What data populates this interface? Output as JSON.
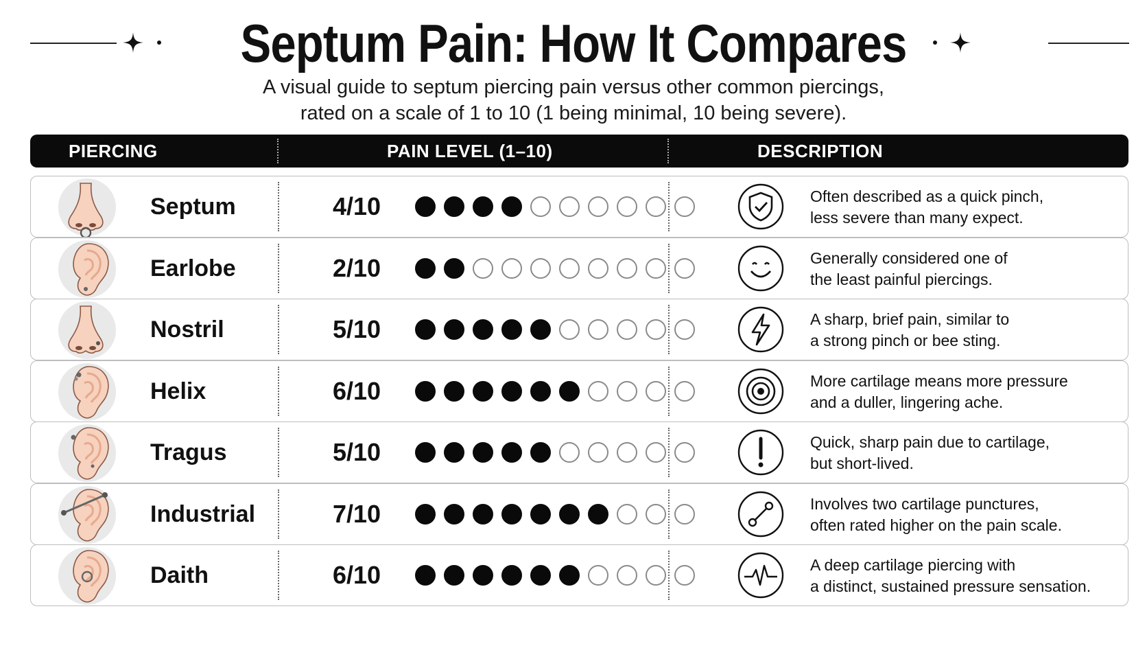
{
  "title": "Septum Pain: How It Compares",
  "subtitle": {
    "line1": "A visual guide to septum piercing pain versus other common piercings,",
    "line2": "rated on a scale of 1 to 10 (1 being minimal, 10 being severe)."
  },
  "table": {
    "headers": {
      "piercing": "PIERCING",
      "pain_level": "PAIN LEVEL (1–10)",
      "description": "DESCRIPTION"
    },
    "max_score": 10,
    "rows": [
      {
        "name": "Septum",
        "score": 4,
        "score_label": "4/10",
        "image": "nose-septum-ring-icon",
        "desc_icon": "shield-check-icon",
        "desc_line1": "Often described as a quick pinch,",
        "desc_line2": "less severe than many expect."
      },
      {
        "name": "Earlobe",
        "score": 2,
        "score_label": "2/10",
        "image": "ear-lobe-stud-icon",
        "desc_icon": "smiley-face-icon",
        "desc_line1": "Generally considered one of",
        "desc_line2": "the least painful piercings."
      },
      {
        "name": "Nostril",
        "score": 5,
        "score_label": "5/10",
        "image": "nose-nostril-stud-icon",
        "desc_icon": "lightning-bolt-icon",
        "desc_line1": "A sharp, brief pain, similar to",
        "desc_line2": "a strong pinch or bee sting."
      },
      {
        "name": "Helix",
        "score": 6,
        "score_label": "6/10",
        "image": "ear-helix-icon",
        "desc_icon": "target-icon",
        "desc_line1": "More cartilage means more pressure",
        "desc_line2": "and a duller, lingering ache."
      },
      {
        "name": "Tragus",
        "score": 5,
        "score_label": "5/10",
        "image": "ear-tragus-icon",
        "desc_icon": "exclamation-icon",
        "desc_line1": "Quick, sharp pain due to cartilage,",
        "desc_line2": "but short-lived."
      },
      {
        "name": "Industrial",
        "score": 7,
        "score_label": "7/10",
        "image": "ear-industrial-bar-icon",
        "desc_icon": "connected-points-icon",
        "desc_line1": "Involves two cartilage punctures,",
        "desc_line2": "often rated higher on the pain scale."
      },
      {
        "name": "Daith",
        "score": 6,
        "score_label": "6/10",
        "image": "ear-daith-ring-icon",
        "desc_icon": "heartbeat-icon",
        "desc_line1": "A deep cartilage piercing with",
        "desc_line2": "a distinct, sustained pressure sensation."
      }
    ]
  },
  "colors": {
    "accent": "#0b0b0b",
    "skin": "#f6d2bf",
    "skin_shade": "#e7a98c",
    "avatar_bg": "#e9e9e9",
    "dot_off_border": "#8a8a8a"
  }
}
